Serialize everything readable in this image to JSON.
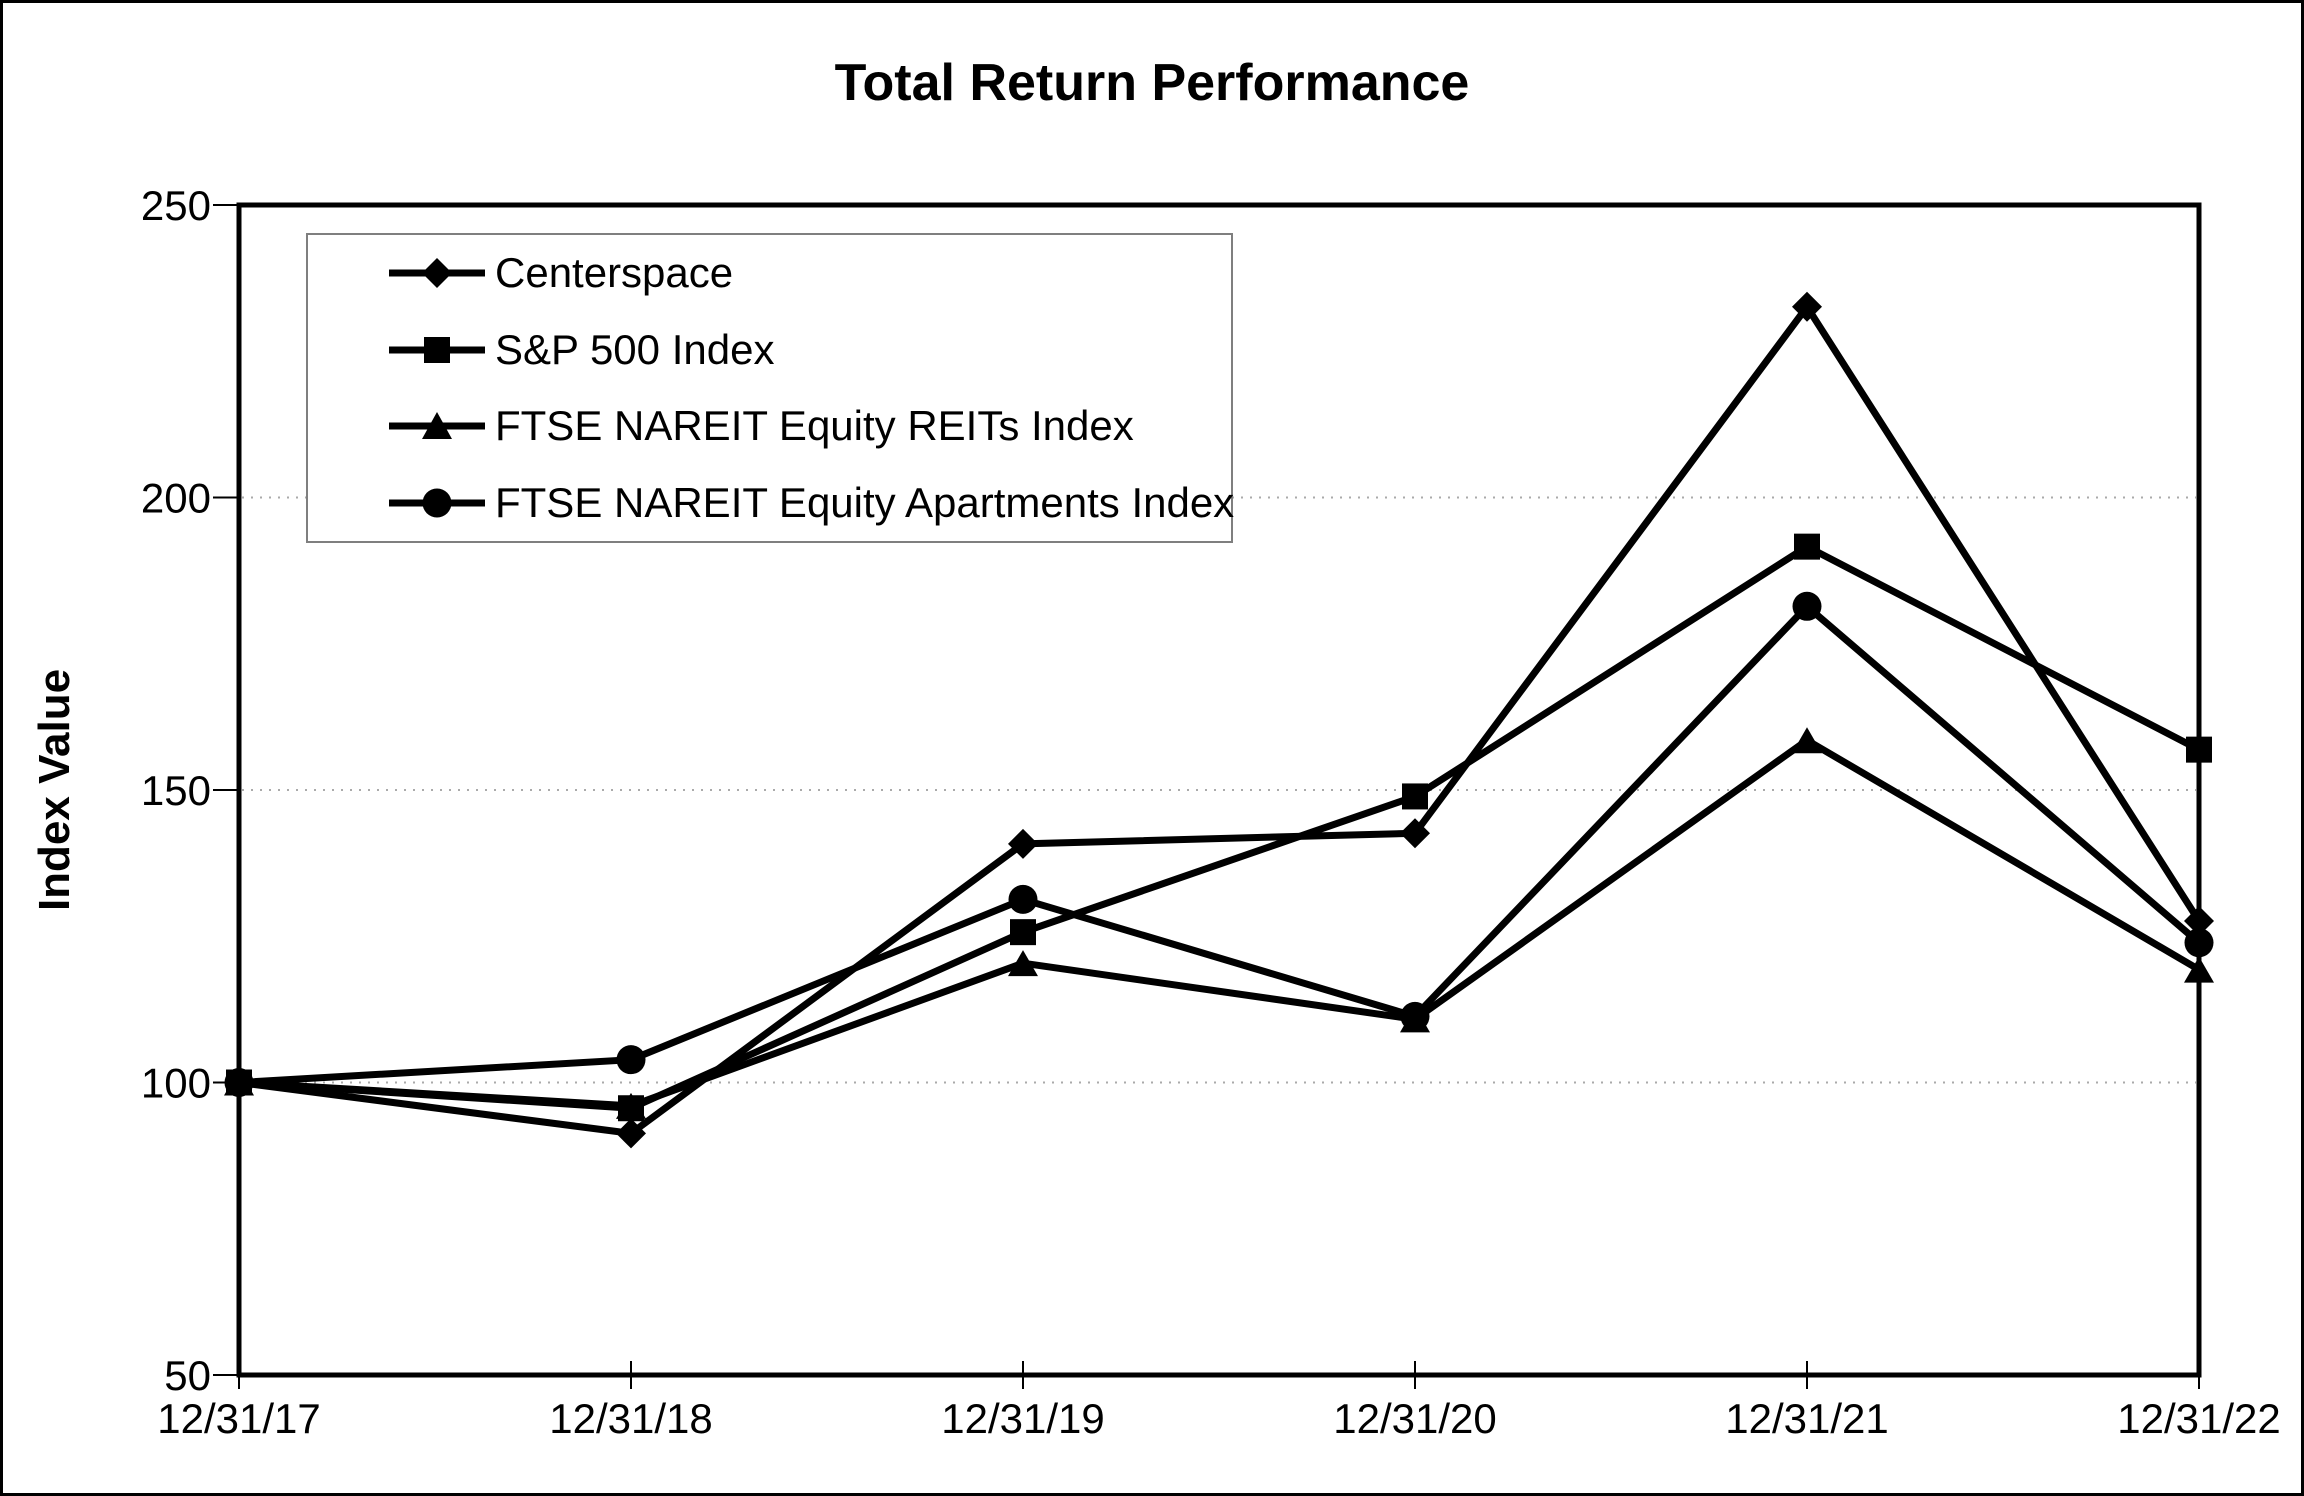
{
  "chart_data": {
    "type": "line",
    "title": "Total Return Performance",
    "ylabel": "Index Value",
    "xlabel": "",
    "ylim": [
      50,
      250
    ],
    "yticks": [
      50,
      100,
      150,
      200,
      250
    ],
    "grid": "horizontal-dotted",
    "legend_position": "top-left-inside",
    "categories": [
      "12/31/17",
      "12/31/18",
      "12/31/19",
      "12/31/20",
      "12/31/21",
      "12/31/22"
    ],
    "series": [
      {
        "name": "Centerspace",
        "marker": "diamond",
        "values": [
          100,
          91.3,
          140.8,
          142.6,
          232.6,
          127.6
        ]
      },
      {
        "name": "S&P 500 Index",
        "marker": "square",
        "values": [
          100,
          95.6,
          125.7,
          148.9,
          191.6,
          156.9
        ]
      },
      {
        "name": "FTSE NAREIT Equity REITs Index",
        "marker": "triangle",
        "values": [
          100,
          96.0,
          120.4,
          110.8,
          158.5,
          119.3
        ]
      },
      {
        "name": "FTSE NAREIT Equity Apartments Index",
        "marker": "circle",
        "values": [
          100,
          103.9,
          131.3,
          111.3,
          181.4,
          123.9
        ]
      }
    ],
    "colors": {
      "series": "#000000",
      "grid": "#aaaaaa",
      "frame": "#000000",
      "legend_border": "#7f7f7f",
      "background": "#ffffff"
    }
  }
}
